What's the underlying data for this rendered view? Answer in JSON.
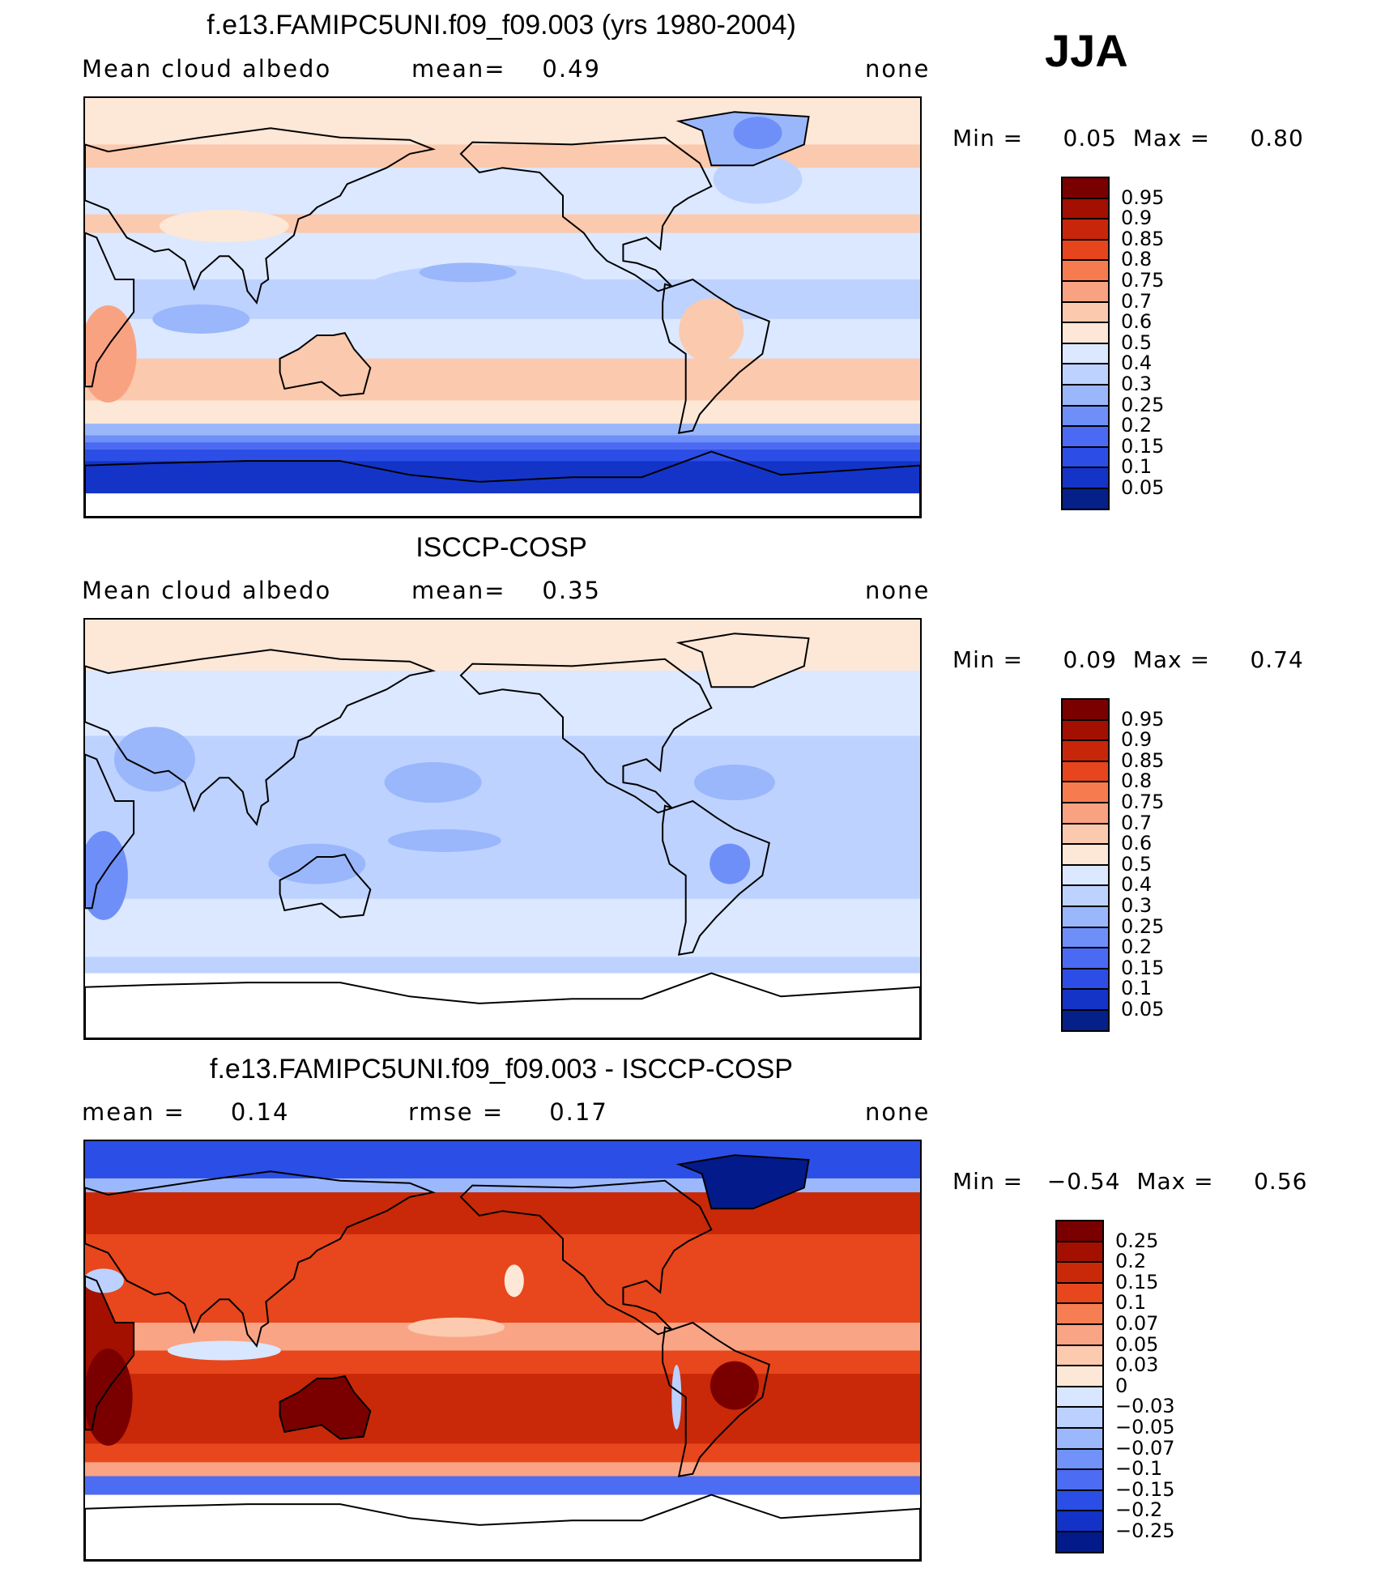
{
  "season": "JJA",
  "colors": {
    "positive_palette": [
      "#7a0000",
      "#a30f00",
      "#c8260b",
      "#e6451d",
      "#f67c50",
      "#f9a282",
      "#fbc9ad",
      "#fde7d6",
      "#dbe8ff",
      "#bdd2ff",
      "#9ab7fb",
      "#6f8ff8",
      "#4a6af3",
      "#2c4ee6",
      "#1434c8",
      "#052089"
    ],
    "diff_palette": [
      "#7a0000",
      "#a31000",
      "#c92908",
      "#e8461c",
      "#f77d52",
      "#f9a485",
      "#fccaae",
      "#fde8d7",
      "#d9e6ff",
      "#bcd1ff",
      "#9bb8fc",
      "#7092f9",
      "#4b6cf3",
      "#2b4ee6",
      "#1232c8",
      "#031a8a"
    ],
    "coast": "#000000",
    "missing": "#ffffff"
  },
  "panels": [
    {
      "id": "model",
      "title": "f.e13.FAMIPC5UNI.f09_f09.003 (yrs 1980-2004)",
      "left_label": "Mean cloud albedo",
      "mid_label": "mean=    0.49",
      "right_label": "none",
      "minmax": "Min =     0.05  Max =     0.80",
      "mean": 0.49,
      "min": 0.05,
      "max": 0.8
    },
    {
      "id": "obs",
      "title": "ISCCP-COSP",
      "left_label": "Mean cloud albedo",
      "mid_label": "mean=    0.35",
      "right_label": "none",
      "minmax": "Min =     0.09  Max =     0.74",
      "mean": 0.35,
      "min": 0.09,
      "max": 0.74
    },
    {
      "id": "diff",
      "title": "f.e13.FAMIPC5UNI.f09_f09.003 - ISCCP-COSP",
      "left_label": "mean =     0.14",
      "mid_label": "rmse =     0.17",
      "right_label": "none",
      "minmax": "Min =   −0.54  Max =     0.56",
      "mean": 0.14,
      "rmse": 0.17,
      "min": -0.54,
      "max": 0.56
    }
  ],
  "chart_data": [
    {
      "type": "heatmap",
      "title": "f.e13.FAMIPC5UNI.f09_f09.003 (yrs 1980-2004)",
      "variable": "Mean cloud albedo",
      "units": "none",
      "season": "JJA",
      "projection": "cylindrical equidistant, Pacific-centered",
      "mean": 0.49,
      "min": 0.05,
      "max": 0.8,
      "colorbar_levels": [
        "0.95",
        "0.9",
        "0.85",
        "0.8",
        "0.75",
        "0.7",
        "0.6",
        "0.5",
        "0.4",
        "0.3",
        "0.25",
        "0.2",
        "0.15",
        "0.1",
        "0.05"
      ],
      "features": [
        {
          "region": "Southern Ocean",
          "value": 0.05
        },
        {
          "region": "Greenland",
          "value": 0.25
        },
        {
          "region": "Subtropical South Pacific",
          "value": 0.55
        },
        {
          "region": "Equatorial Pacific",
          "value": 0.35
        },
        {
          "region": "Southern Africa",
          "value": 0.7
        }
      ]
    },
    {
      "type": "heatmap",
      "title": "ISCCP-COSP",
      "variable": "Mean cloud albedo",
      "units": "none",
      "season": "JJA",
      "mean": 0.35,
      "min": 0.09,
      "max": 0.74,
      "colorbar_levels": [
        "0.95",
        "0.9",
        "0.85",
        "0.8",
        "0.75",
        "0.7",
        "0.6",
        "0.5",
        "0.4",
        "0.3",
        "0.25",
        "0.2",
        "0.15",
        "0.1",
        "0.05"
      ],
      "features": [
        {
          "region": "Arctic / Greenland",
          "value": 0.55
        },
        {
          "region": "North Pacific subtropics",
          "value": 0.25
        },
        {
          "region": "Southern Africa",
          "value": 0.2
        },
        {
          "region": "Tropical Oceans",
          "value": 0.35
        }
      ]
    },
    {
      "type": "heatmap",
      "title": "f.e13.FAMIPC5UNI.f09_f09.003 - ISCCP-COSP",
      "variable": "Mean cloud albedo difference",
      "units": "none",
      "season": "JJA",
      "mean": 0.14,
      "rmse": 0.17,
      "min": -0.54,
      "max": 0.56,
      "colorbar_levels": [
        "0.25",
        "0.2",
        "0.15",
        "0.1",
        "0.07",
        "0.05",
        "0.03",
        "0",
        "−0.03",
        "−0.05",
        "−0.07",
        "−0.1",
        "−0.15",
        "−0.2",
        "−0.25"
      ],
      "features": [
        {
          "region": "Arctic / Greenland",
          "value": -0.25
        },
        {
          "region": "Southern Africa",
          "value": 0.25
        },
        {
          "region": "Australia",
          "value": 0.25
        },
        {
          "region": "Southern Ocean edge",
          "value": -0.15
        }
      ]
    }
  ]
}
